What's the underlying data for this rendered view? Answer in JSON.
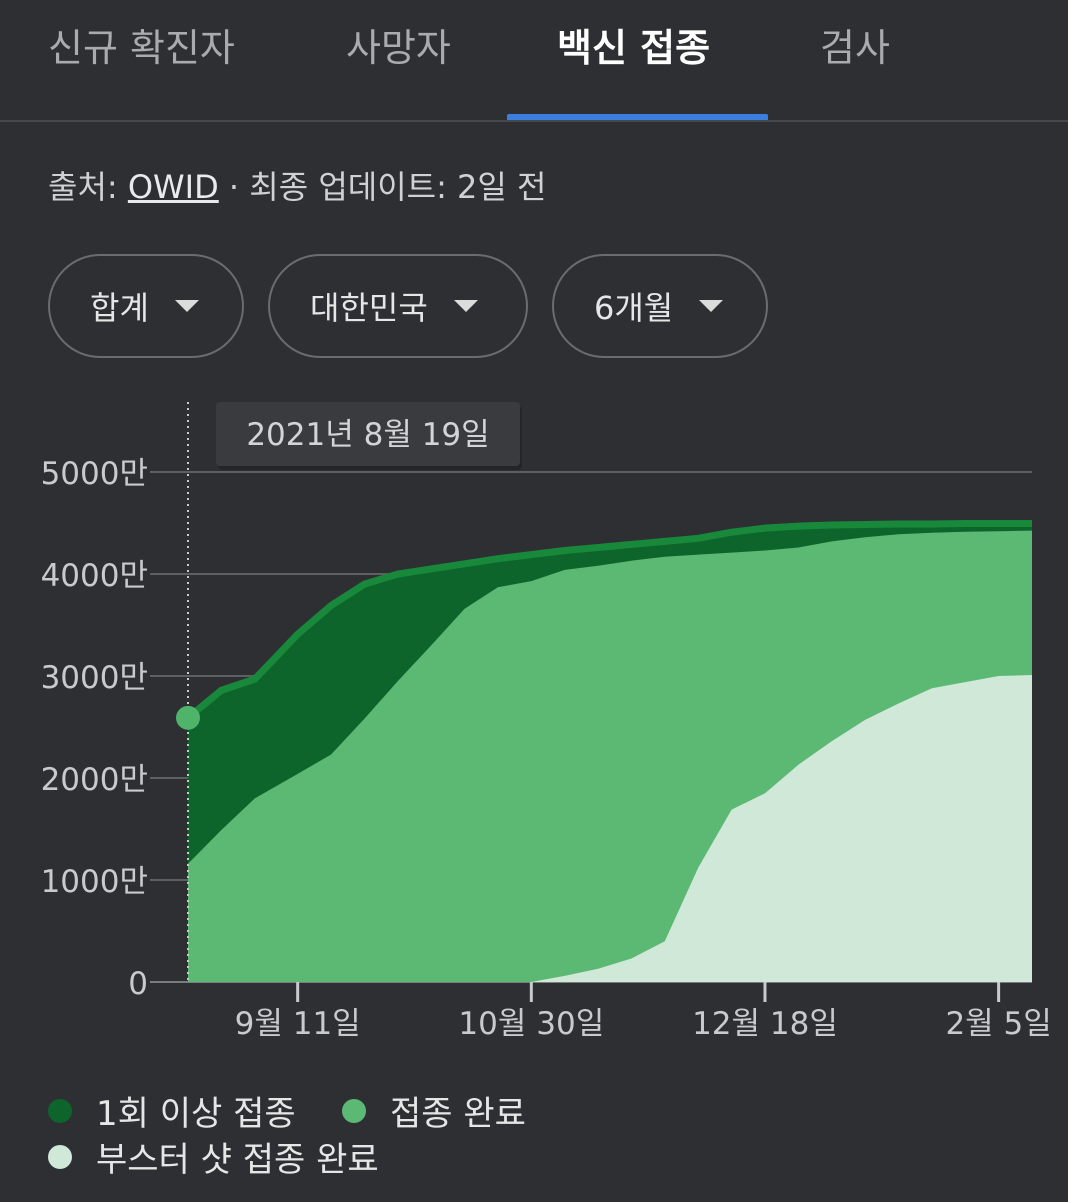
{
  "tabs": [
    {
      "label": "신규 확진자",
      "active": false
    },
    {
      "label": "사망자",
      "active": false
    },
    {
      "label": "백신 접종",
      "active": true
    },
    {
      "label": "검사",
      "active": false
    }
  ],
  "source": {
    "prefix": "출처: ",
    "link": "OWID",
    "suffix": " · 최종 업데이트: 2일 전"
  },
  "filters": [
    {
      "label": "합계"
    },
    {
      "label": "대한민국"
    },
    {
      "label": "6개월"
    }
  ],
  "tooltip": {
    "date": "2021년 8월 19일"
  },
  "legend": [
    {
      "label": "1회 이상 접종",
      "color": "#0e652b"
    },
    {
      "label": "접종 완료",
      "color": "#5cb974"
    },
    {
      "label": "부스터 샷 접종 완료",
      "color": "#cfe8d8"
    }
  ],
  "chart_data": {
    "type": "area",
    "ylim": [
      0,
      55000000
    ],
    "y_ticks": [
      {
        "value": 0,
        "label": "0"
      },
      {
        "value": 10000000,
        "label": "1000만"
      },
      {
        "value": 20000000,
        "label": "2000만"
      },
      {
        "value": 30000000,
        "label": "3000만"
      },
      {
        "value": 40000000,
        "label": "4000만"
      },
      {
        "value": 50000000,
        "label": "5000만"
      }
    ],
    "x_ticks": [
      "9월 11일",
      "10월 30일",
      "12월 18일",
      "2월 5일"
    ],
    "x": [
      "2021-08-19",
      "2021-08-26",
      "2021-09-02",
      "2021-09-11",
      "2021-09-18",
      "2021-09-25",
      "2021-10-02",
      "2021-10-09",
      "2021-10-16",
      "2021-10-23",
      "2021-10-30",
      "2021-11-06",
      "2021-11-13",
      "2021-11-20",
      "2021-11-27",
      "2021-12-04",
      "2021-12-11",
      "2021-12-18",
      "2021-12-25",
      "2022-01-01",
      "2022-01-08",
      "2022-01-15",
      "2022-01-22",
      "2022-01-29",
      "2022-02-05",
      "2022-02-12"
    ],
    "series": [
      {
        "name": "1회 이상 접종",
        "color": "#0e652b",
        "values": [
          25900000,
          28600000,
          29700000,
          34100000,
          36900000,
          39000000,
          40000000,
          40500000,
          41000000,
          41500000,
          41900000,
          42300000,
          42600000,
          42900000,
          43200000,
          43500000,
          44100000,
          44500000,
          44700000,
          44800000,
          44850000,
          44900000,
          44900000,
          44950000,
          44950000,
          44950000
        ]
      },
      {
        "name": "접종 완료",
        "color": "#5cb974",
        "values": [
          11600000,
          14900000,
          18000000,
          20400000,
          22300000,
          25800000,
          29500000,
          33000000,
          36600000,
          38700000,
          39300000,
          40400000,
          40800000,
          41300000,
          41700000,
          41900000,
          42100000,
          42300000,
          42600000,
          43200000,
          43600000,
          43900000,
          44050000,
          44150000,
          44200000,
          44250000
        ]
      },
      {
        "name": "부스터 샷 접종 완료",
        "color": "#cfe8d8",
        "values": [
          0,
          0,
          0,
          0,
          0,
          0,
          0,
          0,
          0,
          0,
          0,
          600000,
          1300000,
          2300000,
          4000000,
          11200000,
          16900000,
          18500000,
          21300000,
          23600000,
          25700000,
          27300000,
          28800000,
          29400000,
          30000000,
          30100000
        ]
      }
    ],
    "grid": true,
    "legend_position": "bottom"
  }
}
